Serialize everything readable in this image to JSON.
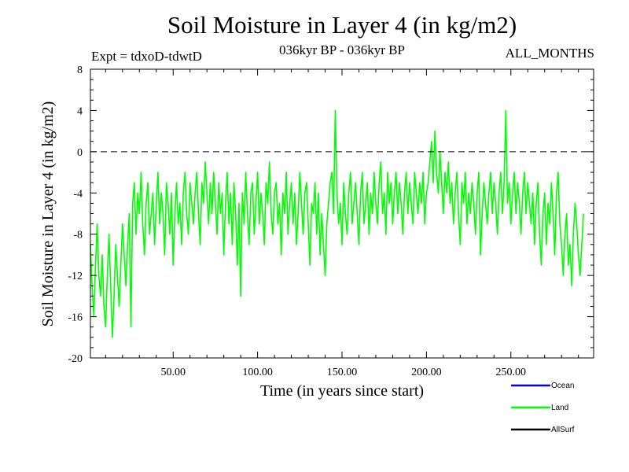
{
  "header": {
    "title": "Soil Moisture in Layer 4 (in kg/m2)",
    "expt": "Expt = tdxoD-tdwtD",
    "period": "036kyr BP - 036kyr BP",
    "months": "ALL_MONTHS"
  },
  "chart_data": {
    "type": "line",
    "title": "Soil Moisture in Layer 4 (in kg/m2)",
    "xlabel": "Time (in years since start)",
    "ylabel": "Soil Moisture in Layer 4 (in kg/m2)",
    "xlim": [
      1,
      299
    ],
    "ylim": [
      -20,
      8
    ],
    "x_ticks": [
      50,
      100,
      150,
      200,
      250
    ],
    "x_tick_labels": [
      "50.00",
      "100.00",
      "150.00",
      "200.00",
      "250.00"
    ],
    "y_ticks": [
      -20,
      -16,
      -12,
      -8,
      -4,
      0,
      4,
      8
    ],
    "y_tick_labels": [
      "-20",
      "-16",
      "-12",
      "-8",
      "-4",
      "0",
      "4",
      "8"
    ],
    "reference_line": {
      "y": 0,
      "style": "dashed"
    },
    "legend": {
      "position": "bottom-right",
      "entries": [
        "Ocean",
        "Land",
        "AllSurf"
      ]
    },
    "series": [
      {
        "name": "Ocean",
        "color": "#0000ff",
        "values": []
      },
      {
        "name": "Land",
        "color": "#00ff00",
        "x_start": 1,
        "x_step": 1,
        "values": [
          -9,
          -13,
          -16,
          -11,
          -7,
          -12,
          -14,
          -10,
          -15,
          -17,
          -12,
          -8,
          -13,
          -18,
          -14,
          -9,
          -12,
          -15,
          -11,
          -7,
          -10,
          -13,
          -9,
          -6,
          -17,
          -5,
          -3,
          -8,
          -4,
          -6,
          -2,
          -7,
          -10,
          -5,
          -3,
          -8,
          -6,
          -4,
          -9,
          -5,
          -2,
          -7,
          -4,
          -6,
          -10,
          -3,
          -5,
          -8,
          -4,
          -11,
          -6,
          -3,
          -7,
          -5,
          -9,
          -4,
          -2,
          -6,
          -8,
          -3,
          -5,
          -7,
          -4,
          -2,
          -6,
          -9,
          -3,
          -5,
          -1,
          -4,
          -7,
          -3,
          -6,
          -2,
          -5,
          -8,
          -3,
          -6,
          -4,
          -10,
          -5,
          -2,
          -7,
          -4,
          -9,
          -3,
          -6,
          -11,
          -5,
          -14,
          -4,
          -7,
          -2,
          -6,
          -9,
          -4,
          -3,
          -8,
          -5,
          -2,
          -7,
          -4,
          -6,
          -9,
          -3,
          -5,
          -1,
          -6,
          -8,
          -4,
          -3,
          -7,
          -5,
          -10,
          -4,
          -6,
          -2,
          -8,
          -5,
          -3,
          -7,
          -4,
          -9,
          -6,
          -2,
          -5,
          -8,
          -4,
          -3,
          -7,
          -11,
          -5,
          -6,
          -3,
          -8,
          -4,
          -10,
          -6,
          -9,
          -12,
          -7,
          -5,
          -3,
          -2,
          -6,
          4,
          -4,
          -7,
          -5,
          -9,
          -3,
          -6,
          -8,
          -4,
          -2,
          -7,
          -5,
          -3,
          -6,
          -9,
          -4,
          -2,
          -7,
          -5,
          -3,
          -8,
          -4,
          -6,
          -2,
          -5,
          -7,
          -3,
          -1,
          -6,
          -4,
          -8,
          -2,
          -5,
          -3,
          -7,
          -4,
          -2,
          -6,
          -3,
          -5,
          -8,
          -4,
          -2,
          -6,
          -3,
          -5,
          -7,
          -2,
          -4,
          -6,
          -3,
          -5,
          -2,
          -7,
          -4,
          -3,
          -1,
          1,
          -3,
          2,
          -2,
          -4,
          0,
          -3,
          -6,
          -2,
          -4,
          -1,
          -5,
          -3,
          -7,
          -4,
          -2,
          -6,
          -9,
          -3,
          -5,
          -2,
          -7,
          -4,
          -6,
          -3,
          -5,
          -8,
          -4,
          -2,
          -10,
          -6,
          -3,
          -5,
          -7,
          -4,
          -2,
          -6,
          -3,
          -5,
          -8,
          -4,
          -2,
          -6,
          -3,
          4,
          -5,
          -3,
          -7,
          -4,
          -2,
          -6,
          -3,
          -5,
          -8,
          -4,
          -2,
          -6,
          -3,
          -5,
          -7,
          -4,
          -9,
          -5,
          -3,
          -8,
          -11,
          -6,
          -4,
          -9,
          -5,
          -7,
          -3,
          -6,
          -10,
          -4,
          -2,
          -7,
          -9,
          -12,
          -8,
          -6,
          -11,
          -9,
          -13,
          -8,
          -5,
          -7,
          -10,
          -12,
          -9,
          -6
        ]
      },
      {
        "name": "AllSurf",
        "color": "#000000",
        "values": []
      }
    ]
  }
}
